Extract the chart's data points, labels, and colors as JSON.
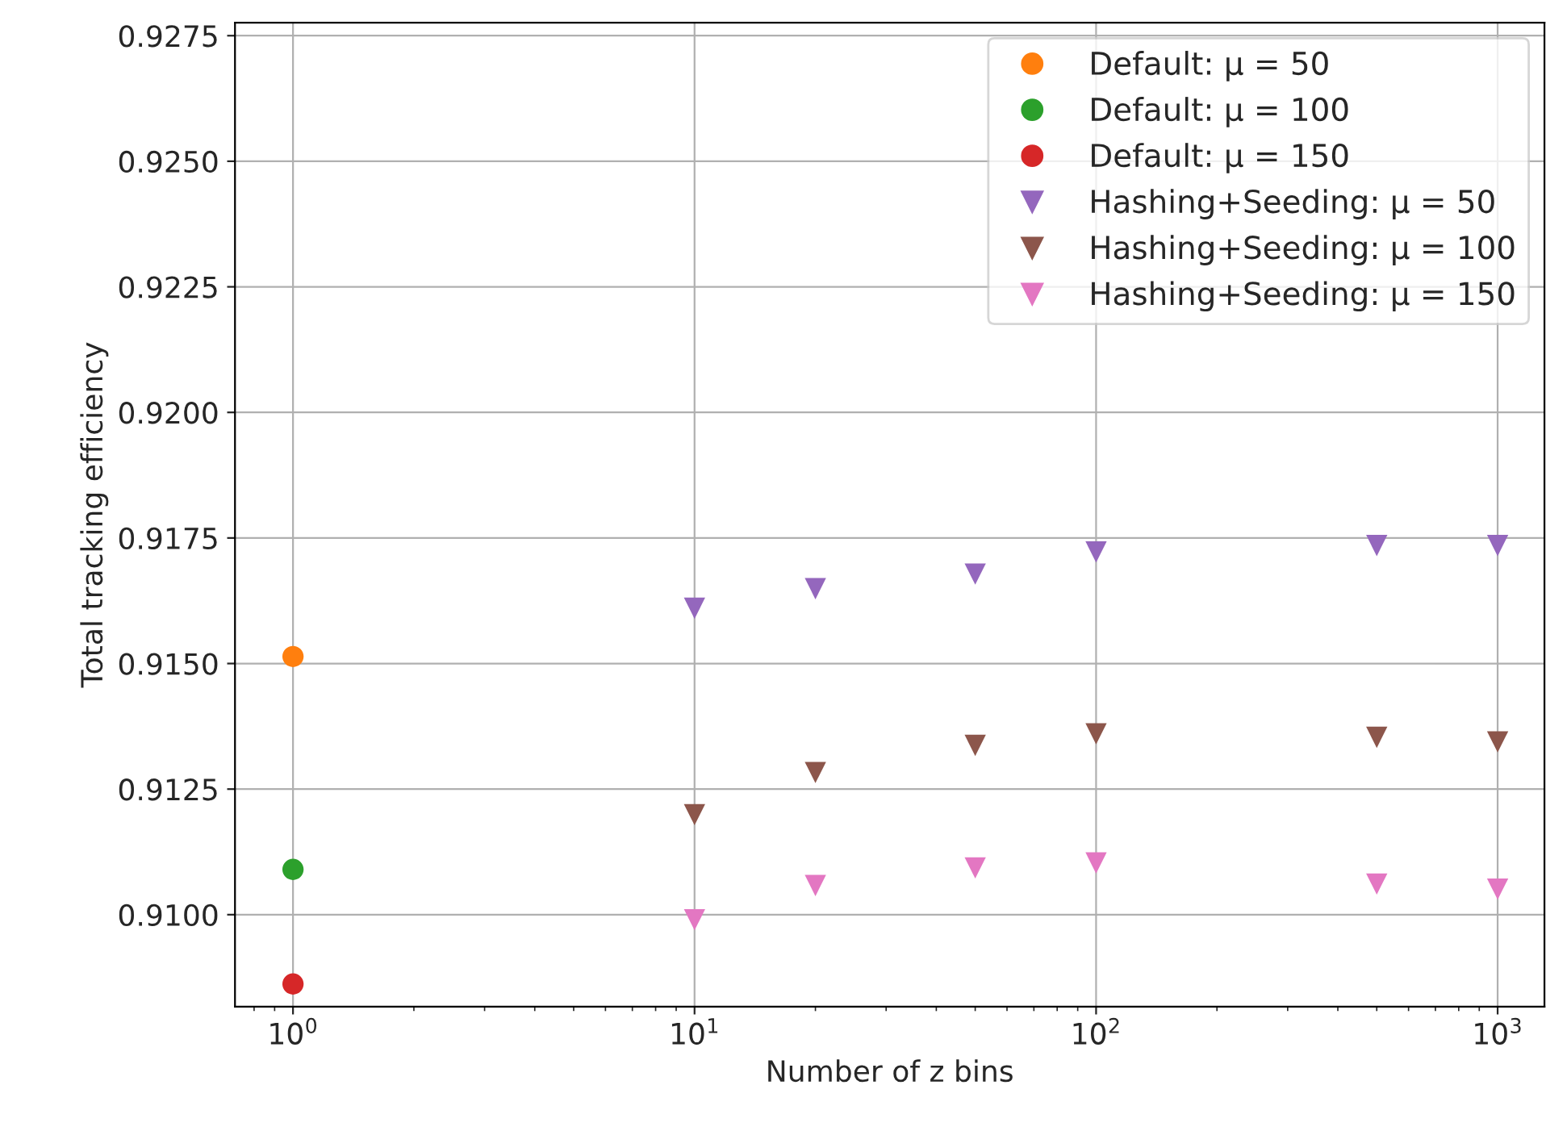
{
  "chart_data": {
    "type": "scatter",
    "xlabel": "Number of z bins",
    "ylabel": "Total tracking efficiency",
    "log": "x",
    "grid": true,
    "legend": "top right",
    "xlim": [
      0.717,
      1308
    ],
    "ylim": [
      0.90817,
      0.92776
    ],
    "xticks": [
      {
        "value": 1,
        "label": "10$^{0}$"
      },
      {
        "value": 10,
        "label": "10$^{1}$"
      },
      {
        "value": 100,
        "label": "10$^{2}$"
      },
      {
        "value": 1000,
        "label": "10$^{3}$"
      }
    ],
    "yticks": [
      {
        "value": 0.91,
        "label": "0.9100"
      },
      {
        "value": 0.9125,
        "label": "0.9125"
      },
      {
        "value": 0.915,
        "label": "0.9150"
      },
      {
        "value": 0.9175,
        "label": "0.9175"
      },
      {
        "value": 0.92,
        "label": "0.9200"
      },
      {
        "value": 0.9225,
        "label": "0.9225"
      },
      {
        "value": 0.925,
        "label": "0.9250"
      },
      {
        "value": 0.9275,
        "label": "0.9275"
      }
    ],
    "series": [
      {
        "name": "Default: μ = 50",
        "color": "#ff7f0e",
        "marker": "circle",
        "x": [
          1
        ],
        "values": [
          0.91514
        ]
      },
      {
        "name": "Default: μ = 100",
        "color": "#2ca02c",
        "marker": "circle",
        "x": [
          1
        ],
        "values": [
          0.9109
        ]
      },
      {
        "name": "Default: μ = 150",
        "color": "#d62728",
        "marker": "circle",
        "x": [
          1
        ],
        "values": [
          0.90862
        ]
      },
      {
        "name": "Hashing+Seeding: μ = 50",
        "color": "#9467bd",
        "marker": "triangle",
        "x": [
          10,
          20,
          50,
          100,
          500,
          1000
        ],
        "values": [
          0.9161,
          0.91649,
          0.91678,
          0.91722,
          0.91735,
          0.91735
        ]
      },
      {
        "name": "Hashing+Seeding: μ = 100",
        "color": "#8c564b",
        "marker": "triangle",
        "x": [
          10,
          20,
          50,
          100,
          500,
          1000
        ],
        "values": [
          0.91199,
          0.91283,
          0.91337,
          0.9136,
          0.91353,
          0.91344
        ]
      },
      {
        "name": "Hashing+Seeding: μ = 150",
        "color": "#e377c2",
        "marker": "triangle",
        "x": [
          10,
          20,
          50,
          100,
          500,
          1000
        ],
        "values": [
          0.9099,
          0.91058,
          0.91093,
          0.91103,
          0.91061,
          0.91051
        ]
      }
    ]
  }
}
